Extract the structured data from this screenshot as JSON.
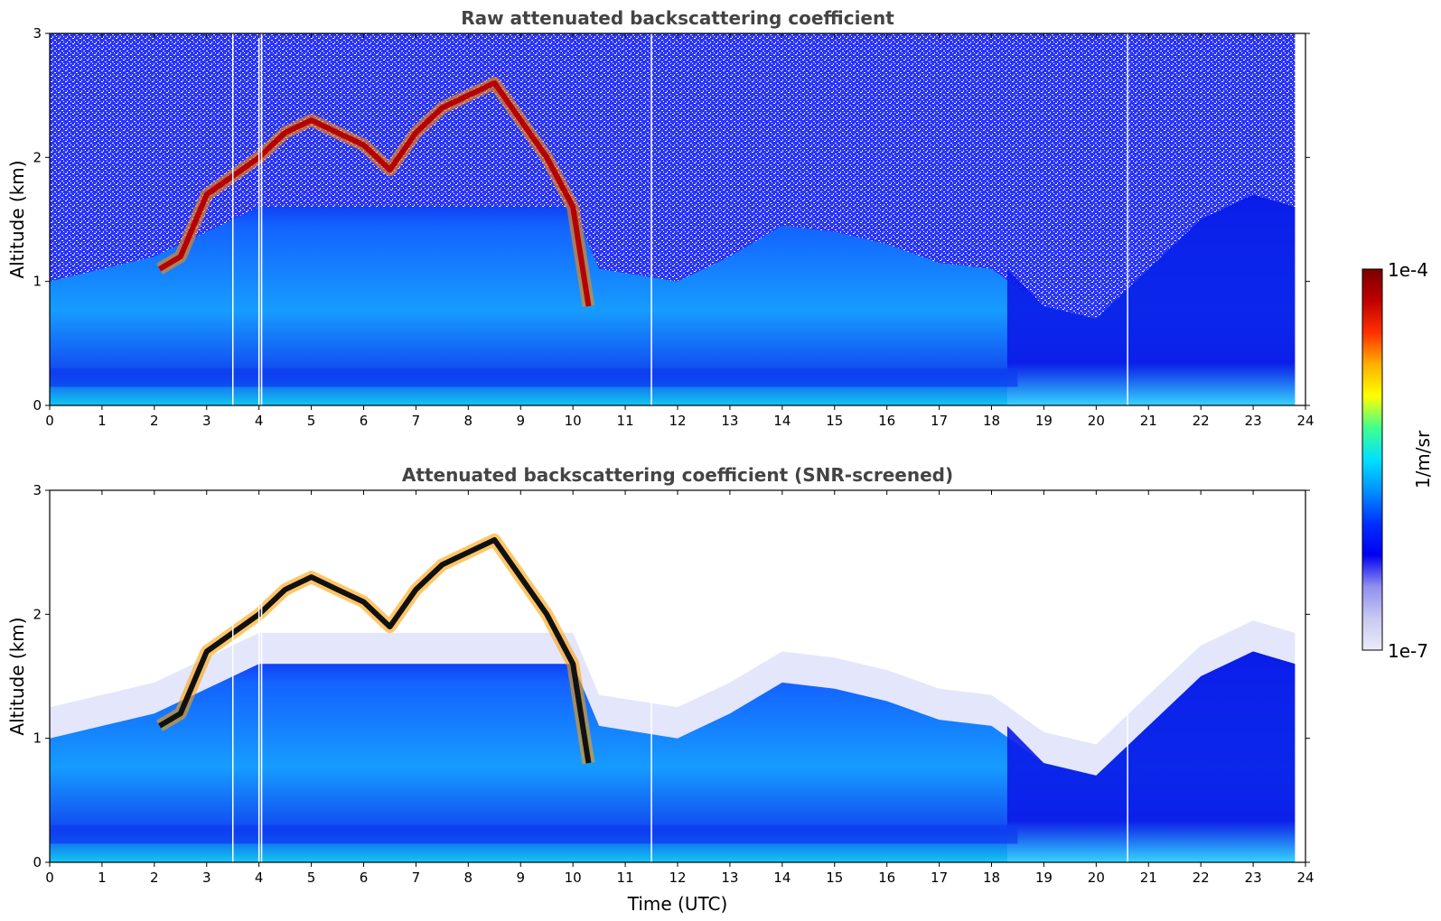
{
  "chart_data": [
    {
      "type": "heatmap",
      "title": "Raw attenuated backscattering coefficient",
      "xlabel": "",
      "ylabel": "Altitude (km)",
      "xlim": [
        0,
        24
      ],
      "ylim": [
        0,
        3
      ],
      "x_ticks": [
        "0",
        "1",
        "2",
        "3",
        "4",
        "5",
        "6",
        "7",
        "8",
        "9",
        "10",
        "11",
        "12",
        "13",
        "14",
        "15",
        "16",
        "17",
        "18",
        "19",
        "20",
        "21",
        "22",
        "23",
        "24"
      ],
      "y_ticks": [
        "0",
        "1",
        "2",
        "3"
      ],
      "data_end_hour": 23.8,
      "gap_hours": [
        3.5,
        4.0,
        4.05,
        11.5,
        20.6
      ],
      "cloud_layer": [
        {
          "t": 2.1,
          "alt": 1.1
        },
        {
          "t": 2.5,
          "alt": 1.2
        },
        {
          "t": 3.0,
          "alt": 1.7
        },
        {
          "t": 3.5,
          "alt": 1.85
        },
        {
          "t": 4.0,
          "alt": 2.0
        },
        {
          "t": 4.5,
          "alt": 2.2
        },
        {
          "t": 5.0,
          "alt": 2.3
        },
        {
          "t": 5.5,
          "alt": 2.2
        },
        {
          "t": 6.0,
          "alt": 2.1
        },
        {
          "t": 6.5,
          "alt": 1.9
        },
        {
          "t": 7.0,
          "alt": 2.2
        },
        {
          "t": 7.5,
          "alt": 2.4
        },
        {
          "t": 8.0,
          "alt": 2.5
        },
        {
          "t": 8.5,
          "alt": 2.6
        },
        {
          "t": 9.0,
          "alt": 2.3
        },
        {
          "t": 9.5,
          "alt": 2.0
        },
        {
          "t": 10.0,
          "alt": 1.6
        },
        {
          "t": 10.3,
          "alt": 0.8
        }
      ],
      "boundary_layer_top": [
        {
          "t": 0,
          "alt": 1.0
        },
        {
          "t": 2,
          "alt": 1.2
        },
        {
          "t": 4,
          "alt": 1.6
        },
        {
          "t": 10,
          "alt": 1.6
        },
        {
          "t": 10.5,
          "alt": 1.1
        },
        {
          "t": 12,
          "alt": 1.0
        },
        {
          "t": 13,
          "alt": 1.2
        },
        {
          "t": 14,
          "alt": 1.45
        },
        {
          "t": 15,
          "alt": 1.4
        },
        {
          "t": 16,
          "alt": 1.3
        },
        {
          "t": 17,
          "alt": 1.15
        },
        {
          "t": 18,
          "alt": 1.1
        },
        {
          "t": 19,
          "alt": 0.8
        },
        {
          "t": 20,
          "alt": 0.7
        },
        {
          "t": 21,
          "alt": 1.1
        },
        {
          "t": 22,
          "alt": 1.5
        },
        {
          "t": 23,
          "alt": 1.7
        },
        {
          "t": 23.8,
          "alt": 1.6
        }
      ]
    },
    {
      "type": "heatmap",
      "title": "Attenuated backscattering coefficient (SNR-screened)",
      "xlabel": "Time (UTC)",
      "ylabel": "Altitude (km)",
      "xlim": [
        0,
        24
      ],
      "ylim": [
        0,
        3
      ],
      "x_ticks": [
        "0",
        "1",
        "2",
        "3",
        "4",
        "5",
        "6",
        "7",
        "8",
        "9",
        "10",
        "11",
        "12",
        "13",
        "14",
        "15",
        "16",
        "17",
        "18",
        "19",
        "20",
        "21",
        "22",
        "23",
        "24"
      ],
      "y_ticks": [
        "0",
        "1",
        "2",
        "3"
      ],
      "data_end_hour": 23.8,
      "gap_hours": [
        3.5,
        4.0,
        4.05,
        11.5,
        20.6
      ]
    }
  ],
  "colorbar": {
    "label": "1/m/sr",
    "max_label": "1e-4",
    "min_label": "1e-7",
    "colormap": [
      "#ecebf8",
      "#c8c8f2",
      "#8f8ff0",
      "#0000f0",
      "#0030ff",
      "#0090ff",
      "#00e0ff",
      "#40ff90",
      "#ffff00",
      "#ffb000",
      "#ff3000",
      "#c00000",
      "#7a0000"
    ]
  }
}
